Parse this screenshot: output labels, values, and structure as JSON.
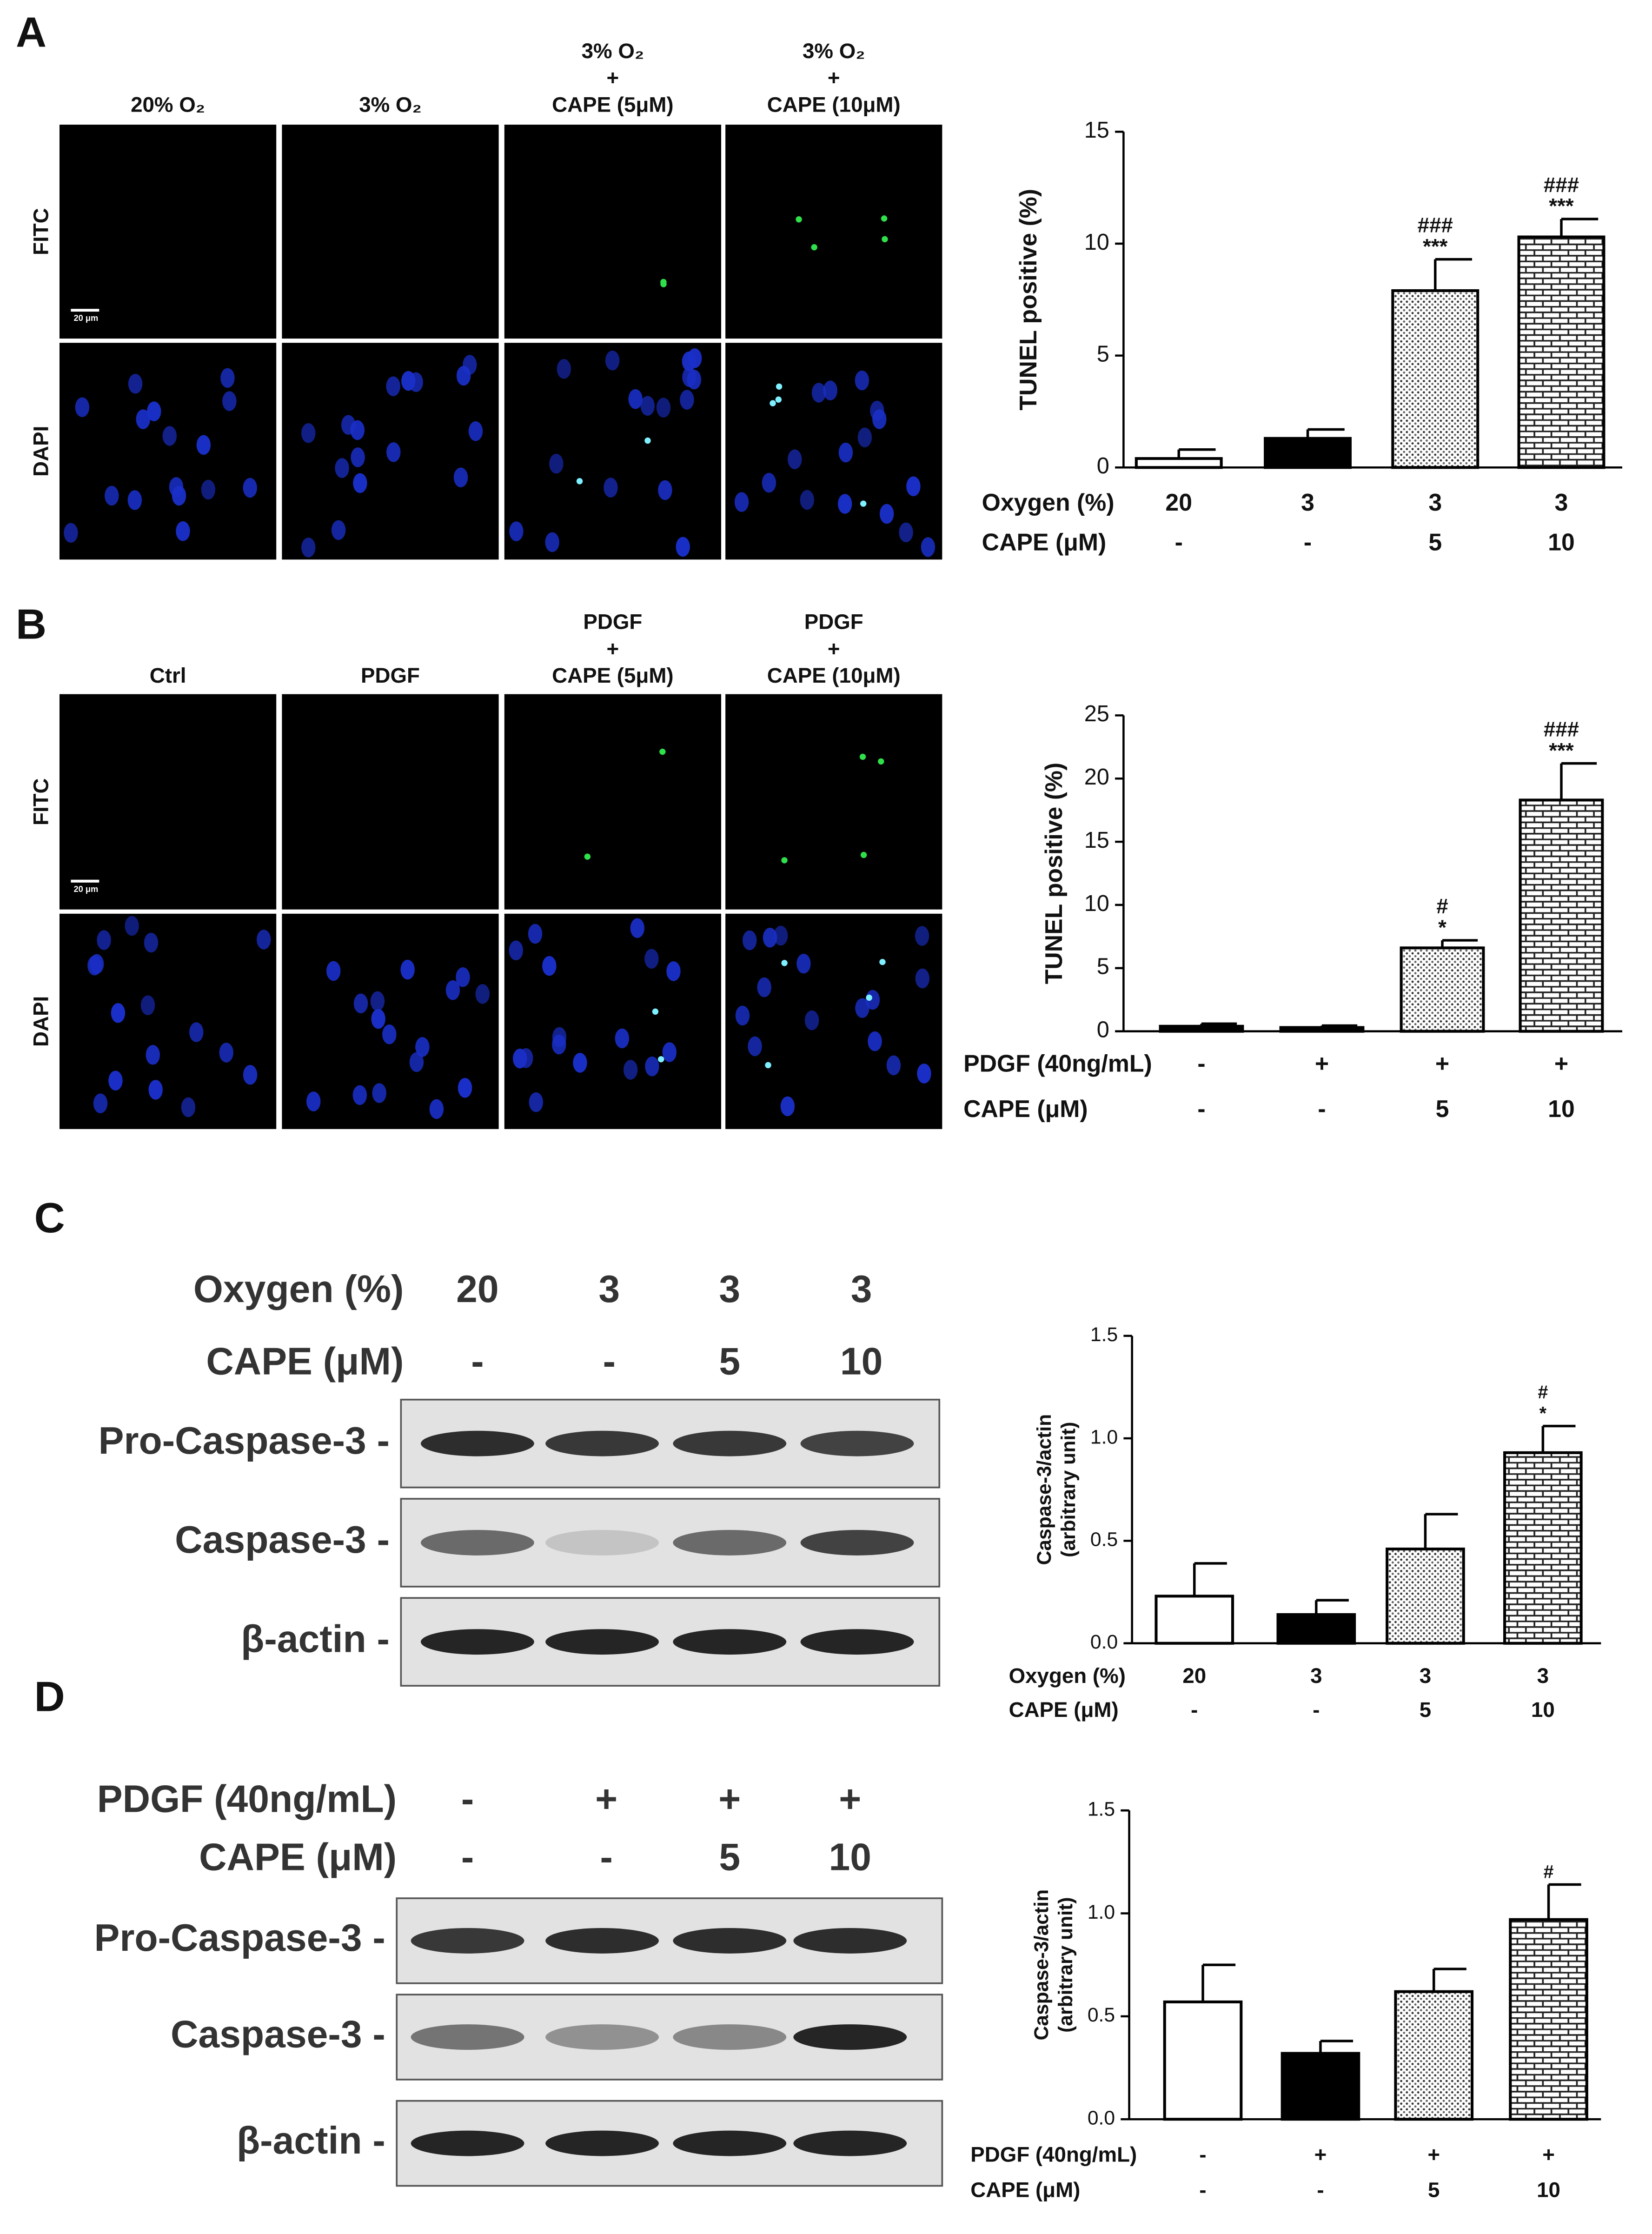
{
  "panels": [
    {
      "label": "A",
      "micrograph": {
        "columns": [
          [
            "20% O₂"
          ],
          [
            "3% O₂"
          ],
          [
            "3% O₂",
            "+",
            "CAPE (5μM)"
          ],
          [
            "3% O₂",
            "+",
            "CAPE (10μM)"
          ]
        ],
        "rows": [
          "FITC",
          "DAPI"
        ],
        "scale_bar": "20 μm"
      }
    },
    {
      "label": "B",
      "micrograph": {
        "columns": [
          [
            "Ctrl"
          ],
          [
            "PDGF"
          ],
          [
            "PDGF",
            "+",
            "CAPE (5μM)"
          ],
          [
            "PDGF",
            "+",
            "CAPE (10μM)"
          ]
        ],
        "rows": [
          "FITC",
          "DAPI"
        ],
        "scale_bar": "20 μm"
      }
    },
    {
      "label": "C",
      "blot": {
        "conditions": [
          {
            "label": "Oxygen (%)",
            "values": [
              "20",
              "3",
              "3",
              "3"
            ]
          },
          {
            "label": "CAPE (μM)",
            "values": [
              "-",
              "-",
              "5",
              "10"
            ]
          }
        ],
        "bands": [
          "Pro-Caspase-3 -",
          "Caspase-3 -",
          "β-actin -"
        ]
      }
    },
    {
      "label": "D",
      "blot": {
        "conditions": [
          {
            "label": "PDGF (40ng/mL)",
            "values": [
              "-",
              "+",
              "+",
              "+"
            ]
          },
          {
            "label": "CAPE (μM)",
            "values": [
              "-",
              "-",
              "5",
              "10"
            ]
          }
        ],
        "bands": [
          "Pro-Caspase-3 -",
          "Caspase-3 -",
          "β-actin -"
        ]
      }
    }
  ],
  "chart_data": [
    {
      "type": "bar",
      "ylabel": "TUNEL positive (%)",
      "category_rows": [
        {
          "label": "Oxygen (%)",
          "values": [
            "20",
            "3",
            "3",
            "3"
          ]
        },
        {
          "label": "CAPE (μM)",
          "values": [
            "-",
            "-",
            "5",
            "10"
          ]
        }
      ],
      "values": [
        0.4,
        1.3,
        7.9,
        10.3
      ],
      "errors": [
        0.4,
        0.4,
        1.4,
        0.8
      ],
      "annotations": [
        null,
        null,
        [
          "###",
          "***"
        ],
        [
          "###",
          "***"
        ]
      ],
      "bar_styles": [
        "open",
        "solid",
        "dots",
        "bricks"
      ],
      "ylim": [
        0,
        15
      ],
      "yticks": [
        0,
        5,
        10,
        15
      ]
    },
    {
      "type": "bar",
      "ylabel": "TUNEL positive (%)",
      "category_rows": [
        {
          "label": "PDGF (40ng/mL)",
          "values": [
            "-",
            "+",
            "+",
            "+"
          ]
        },
        {
          "label": "CAPE (μM)",
          "values": [
            "-",
            "-",
            "5",
            "10"
          ]
        }
      ],
      "values": [
        0.4,
        0.3,
        6.6,
        18.3
      ],
      "errors": [
        0.2,
        0.15,
        0.6,
        2.9
      ],
      "annotations": [
        null,
        null,
        [
          "#",
          "*"
        ],
        [
          "###",
          "***"
        ]
      ],
      "bar_styles": [
        "solid",
        "solid",
        "dots",
        "bricks"
      ],
      "ylim": [
        0,
        25
      ],
      "yticks": [
        0,
        5,
        10,
        15,
        20,
        25
      ]
    },
    {
      "type": "bar",
      "ylabel": [
        "Caspase-3/actin",
        "(arbitrary unit)"
      ],
      "category_rows": [
        {
          "label": "Oxygen (%)",
          "values": [
            "20",
            "3",
            "3",
            "3"
          ]
        },
        {
          "label": "CAPE (μM)",
          "values": [
            "-",
            "-",
            "5",
            "10"
          ]
        }
      ],
      "values": [
        0.23,
        0.14,
        0.46,
        0.93
      ],
      "errors": [
        0.16,
        0.07,
        0.17,
        0.13
      ],
      "annotations": [
        null,
        null,
        null,
        [
          "#",
          "*"
        ]
      ],
      "bar_styles": [
        "open",
        "solid",
        "dots",
        "bricks"
      ],
      "ylim": [
        0,
        1.5
      ],
      "yticks": [
        {
          "value": 0,
          "label": "0.0"
        },
        {
          "value": 0.5,
          "label": "0.5"
        },
        {
          "value": 1,
          "label": "1.0"
        },
        {
          "value": 1.5,
          "label": "1.5"
        }
      ]
    },
    {
      "type": "bar",
      "ylabel": [
        "Caspase-3/actin",
        "(arbitrary unit)"
      ],
      "category_rows": [
        {
          "label": "PDGF (40ng/mL)",
          "values": [
            "-",
            "+",
            "+",
            "+"
          ]
        },
        {
          "label": "CAPE (μM)",
          "values": [
            "-",
            "-",
            "5",
            "10"
          ]
        }
      ],
      "values": [
        0.57,
        0.32,
        0.62,
        0.97
      ],
      "errors": [
        0.18,
        0.06,
        0.11,
        0.17
      ],
      "annotations": [
        null,
        null,
        null,
        [
          "#"
        ]
      ],
      "bar_styles": [
        "open",
        "solid",
        "dots",
        "bricks"
      ],
      "ylim": [
        0,
        1.5
      ],
      "yticks": [
        {
          "value": 0,
          "label": "0.0"
        },
        {
          "value": 0.5,
          "label": "0.5"
        },
        {
          "value": 1,
          "label": "1.0"
        },
        {
          "value": 1.5,
          "label": "1.5"
        }
      ]
    }
  ]
}
